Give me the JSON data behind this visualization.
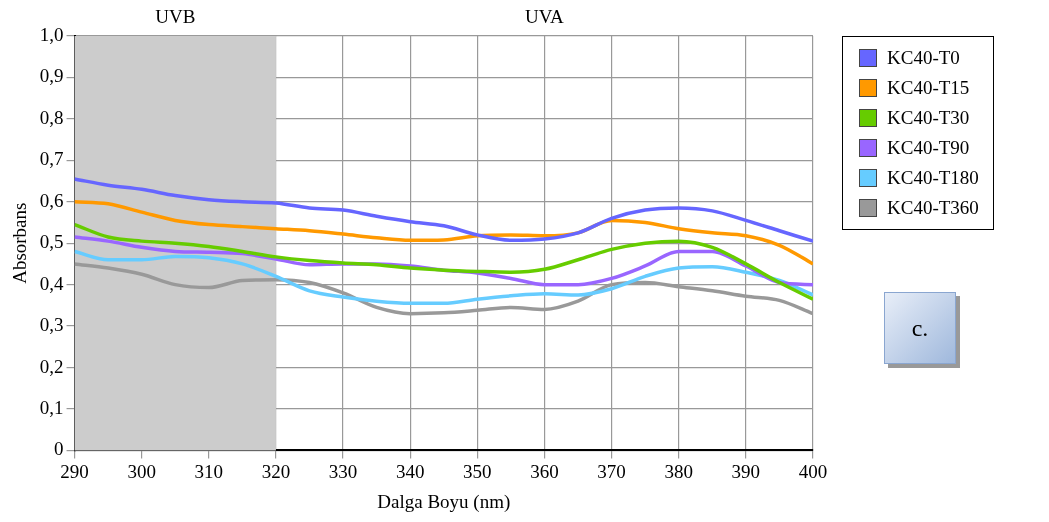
{
  "chart_data": {
    "type": "line",
    "xlabel": "Dalga Boyu (nm)",
    "ylabel": "Absorbans",
    "x": [
      290,
      295,
      300,
      305,
      310,
      315,
      320,
      325,
      330,
      335,
      340,
      345,
      350,
      355,
      360,
      365,
      370,
      375,
      380,
      385,
      390,
      395,
      400
    ],
    "series": [
      {
        "name": "KC40-T0",
        "color": "#6666ff",
        "values": [
          0.655,
          0.64,
          0.63,
          0.615,
          0.605,
          0.6,
          0.597,
          0.585,
          0.58,
          0.565,
          0.552,
          0.542,
          0.52,
          0.507,
          0.51,
          0.525,
          0.56,
          0.58,
          0.585,
          0.578,
          0.555,
          0.53,
          0.505
        ]
      },
      {
        "name": "KC40-T15",
        "color": "#ff9900",
        "values": [
          0.6,
          0.595,
          0.575,
          0.555,
          0.545,
          0.54,
          0.535,
          0.53,
          0.522,
          0.513,
          0.507,
          0.508,
          0.518,
          0.52,
          0.518,
          0.525,
          0.555,
          0.55,
          0.535,
          0.525,
          0.518,
          0.495,
          0.45
        ]
      },
      {
        "name": "KC40-T30",
        "color": "#66cc00",
        "values": [
          0.545,
          0.515,
          0.505,
          0.5,
          0.492,
          0.48,
          0.467,
          0.458,
          0.452,
          0.448,
          0.44,
          0.435,
          0.432,
          0.43,
          0.437,
          0.46,
          0.485,
          0.5,
          0.505,
          0.49,
          0.45,
          0.405,
          0.365
        ]
      },
      {
        "name": "KC40-T90",
        "color": "#9966ff",
        "values": [
          0.515,
          0.505,
          0.49,
          0.48,
          0.478,
          0.475,
          0.462,
          0.448,
          0.45,
          0.45,
          0.445,
          0.435,
          0.428,
          0.415,
          0.4,
          0.4,
          0.415,
          0.445,
          0.48,
          0.48,
          0.445,
          0.405,
          0.4
        ]
      },
      {
        "name": "KC40-T180",
        "color": "#66ccff",
        "values": [
          0.48,
          0.46,
          0.46,
          0.468,
          0.465,
          0.45,
          0.42,
          0.385,
          0.37,
          0.36,
          0.355,
          0.355,
          0.365,
          0.373,
          0.378,
          0.375,
          0.39,
          0.42,
          0.44,
          0.443,
          0.43,
          0.41,
          0.375
        ]
      },
      {
        "name": "KC40-T360",
        "color": "#999999",
        "values": [
          0.45,
          0.44,
          0.425,
          0.4,
          0.393,
          0.41,
          0.412,
          0.405,
          0.38,
          0.345,
          0.33,
          0.332,
          0.338,
          0.345,
          0.34,
          0.36,
          0.4,
          0.405,
          0.395,
          0.385,
          0.372,
          0.362,
          0.33
        ]
      }
    ],
    "xlim": [
      290,
      400
    ],
    "xticks": [
      290,
      300,
      310,
      320,
      330,
      340,
      350,
      360,
      370,
      380,
      390,
      400
    ],
    "ylim": [
      0,
      1
    ],
    "yticks": [
      0,
      {
        "value": 0.1,
        "label": "0,1"
      },
      {
        "value": 0.2,
        "label": "0,2"
      },
      {
        "value": 0.3,
        "label": "0,3"
      },
      {
        "value": 0.4,
        "label": "0,4"
      },
      {
        "value": 0.5,
        "label": "0,5"
      },
      {
        "value": 0.6,
        "label": "0,6"
      },
      {
        "value": 0.7,
        "label": "0,7"
      },
      {
        "value": 0.8,
        "label": "0,8"
      },
      {
        "value": 0.9,
        "label": "0,9"
      },
      {
        "value": 1,
        "label": "1,0"
      }
    ],
    "bands": [
      {
        "axis": "x",
        "from": 290,
        "to": 320,
        "label": "UVB",
        "color": "#cccccc"
      }
    ],
    "annotations": [
      "UVA",
      "c."
    ],
    "grid": true,
    "legend": "right",
    "marker": "none",
    "line_style": "solid"
  }
}
